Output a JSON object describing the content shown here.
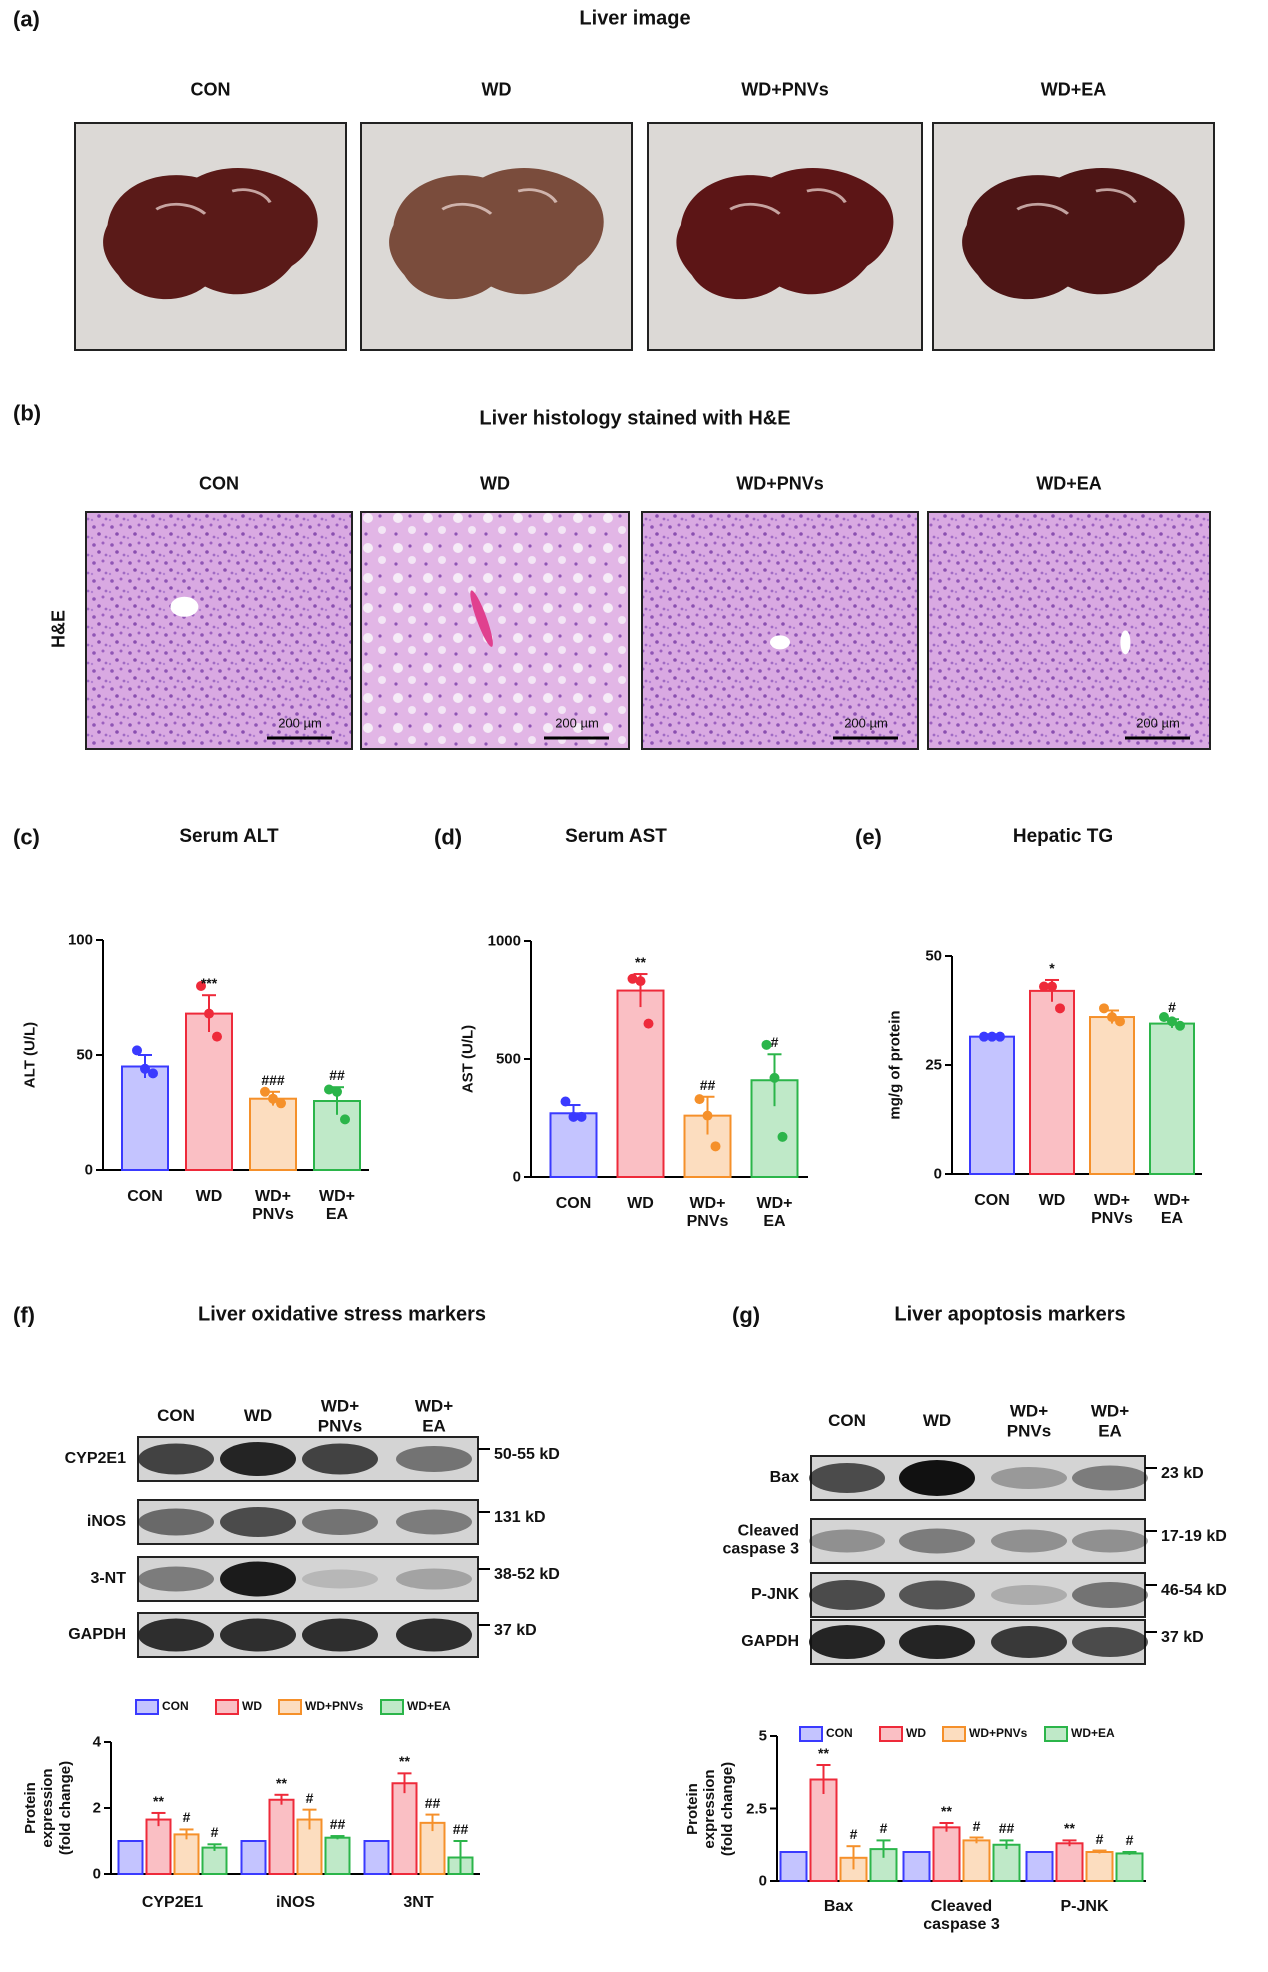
{
  "panel_a": {
    "label": "(a)",
    "title": "Liver image",
    "groups": [
      "CON",
      "WD",
      "WD+PNVs",
      "WD+EA"
    ]
  },
  "panel_b": {
    "label": "(b)",
    "title": "Liver histology stained with H&E",
    "groups": [
      "CON",
      "WD",
      "WD+PNVs",
      "WD+EA"
    ],
    "stain": "H&E",
    "scale_bar": "200 µm"
  },
  "panel_f": {
    "label": "(f)",
    "title": "Liver oxidative stress markers",
    "lanes": [
      "CON",
      "WD",
      "WD+\nPNVs",
      "WD+\nEA"
    ],
    "proteins": [
      "CYP2E1",
      "iNOS",
      "3-NT",
      "GAPDH"
    ],
    "sizes": [
      "50-55 kD",
      "131 kD",
      "38-52 kD",
      "37 kD"
    ]
  },
  "panel_g": {
    "label": "(g)",
    "title": "Liver apoptosis markers",
    "lanes": [
      "CON",
      "WD",
      "WD+\nPNVs",
      "WD+\nEA"
    ],
    "proteins": [
      "Bax",
      "Cleaved\ncaspase 3",
      "P-JNK",
      "GAPDH"
    ],
    "sizes": [
      "23 kD",
      "17-19 kD",
      "46-54 kD",
      "37 kD"
    ]
  },
  "chart_data": [
    {
      "type": "bar",
      "label": "(c)",
      "title": "Serum ALT",
      "y_label": "ALT (U/L)",
      "categories": [
        "CON",
        "WD",
        "WD+\nPNVs",
        "WD+\nEA"
      ],
      "colors": [
        "#3a3aff",
        "#ee2a3a",
        "#f5902a",
        "#2bb54a"
      ],
      "values": [
        45,
        68,
        31,
        30
      ],
      "errors": [
        5,
        8,
        3,
        6
      ],
      "significance": [
        null,
        "***",
        "###",
        "##"
      ],
      "points": [
        [
          52,
          44,
          42
        ],
        [
          80,
          68,
          58
        ],
        [
          34,
          31,
          29
        ],
        [
          35,
          34,
          22
        ]
      ],
      "ylim": [
        0,
        100
      ],
      "yticks": [
        0,
        50,
        100
      ]
    },
    {
      "type": "bar",
      "label": "(d)",
      "title": "Serum AST",
      "y_label": "AST (U/L)",
      "categories": [
        "CON",
        "WD",
        "WD+\nPNVs",
        "WD+\nEA"
      ],
      "colors": [
        "#3a3aff",
        "#ee2a3a",
        "#f5902a",
        "#2bb54a"
      ],
      "values": [
        270,
        790,
        260,
        410
      ],
      "errors": [
        35,
        70,
        80,
        110
      ],
      "significance": [
        null,
        "**",
        "##",
        "#"
      ],
      "points": [
        [
          320,
          255,
          255
        ],
        [
          840,
          830,
          650
        ],
        [
          330,
          260,
          130
        ],
        [
          560,
          420,
          170
        ]
      ],
      "ylim": [
        0,
        1000
      ],
      "yticks": [
        0,
        500,
        1000
      ]
    },
    {
      "type": "bar",
      "label": "(e)",
      "title": "Hepatic TG",
      "y_label": "mg/g of protein",
      "categories": [
        "CON",
        "WD",
        "WD+\nPNVs",
        "WD+\nEA"
      ],
      "colors": [
        "#3a3aff",
        "#ee2a3a",
        "#f5902a",
        "#2bb54a"
      ],
      "values": [
        31.5,
        42,
        36,
        34.5
      ],
      "errors": [
        0.5,
        2.5,
        1.5,
        1
      ],
      "significance": [
        null,
        "*",
        null,
        "#"
      ],
      "points": [
        [
          31.5,
          31.5,
          31.5
        ],
        [
          43,
          43,
          38
        ],
        [
          38,
          36,
          35
        ],
        [
          36,
          35,
          34
        ]
      ],
      "ylim": [
        0,
        50
      ],
      "yticks": [
        0,
        25,
        50
      ]
    },
    {
      "type": "bar",
      "y_label": "Protein\nexpression\n(fold change)",
      "categories": [
        "CYP2E1",
        "iNOS",
        "3NT"
      ],
      "ylim": [
        0,
        4
      ],
      "yticks": [
        0,
        2,
        4
      ],
      "series": [
        {
          "name": "CON",
          "color": "#3a3aff",
          "values": [
            1,
            1,
            1
          ]
        },
        {
          "name": "WD",
          "color": "#ee2a3a",
          "values": [
            1.65,
            2.25,
            2.75
          ],
          "errors": [
            0.2,
            0.15,
            0.3
          ],
          "significance": [
            "**",
            "**",
            "**"
          ]
        },
        {
          "name": "WD+PNVs",
          "color": "#f5902a",
          "values": [
            1.2,
            1.65,
            1.55
          ],
          "errors": [
            0.15,
            0.3,
            0.25
          ],
          "significance": [
            "#",
            "#",
            "##"
          ]
        },
        {
          "name": "WD+EA",
          "color": "#2bb54a",
          "values": [
            0.8,
            1.1,
            0.5
          ],
          "errors": [
            0.1,
            0.05,
            0.5
          ],
          "significance": [
            "#",
            "##",
            "##"
          ]
        }
      ]
    },
    {
      "type": "bar",
      "y_label": "Protein\nexpression\n(fold change)",
      "categories": [
        "Bax",
        "Cleaved\ncaspase 3",
        "P-JNK"
      ],
      "ylim": [
        0,
        5
      ],
      "yticks": [
        0,
        2.5,
        5
      ],
      "series": [
        {
          "name": "CON",
          "color": "#3a3aff",
          "values": [
            1,
            1,
            1
          ]
        },
        {
          "name": "WD",
          "color": "#ee2a3a",
          "values": [
            3.5,
            1.85,
            1.3
          ],
          "errors": [
            0.5,
            0.15,
            0.1
          ],
          "significance": [
            "**",
            "**",
            "**"
          ]
        },
        {
          "name": "WD+PNVs",
          "color": "#f5902a",
          "values": [
            0.8,
            1.4,
            1.0
          ],
          "errors": [
            0.4,
            0.1,
            0.05
          ],
          "significance": [
            "#",
            "#",
            "#"
          ]
        },
        {
          "name": "WD+EA",
          "color": "#2bb54a",
          "values": [
            1.1,
            1.25,
            0.95
          ],
          "errors": [
            0.3,
            0.15,
            0.05
          ],
          "significance": [
            "#",
            "##",
            "#"
          ]
        }
      ]
    }
  ]
}
